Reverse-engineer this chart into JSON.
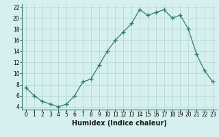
{
  "x": [
    0,
    1,
    2,
    3,
    4,
    5,
    6,
    7,
    8,
    9,
    10,
    11,
    12,
    13,
    14,
    15,
    16,
    17,
    18,
    19,
    20,
    21,
    22,
    23
  ],
  "y": [
    7.5,
    6.0,
    5.0,
    4.5,
    4.0,
    4.5,
    6.0,
    8.5,
    9.0,
    11.5,
    14.0,
    16.0,
    17.5,
    19.0,
    21.5,
    20.5,
    21.0,
    21.5,
    20.0,
    20.5,
    18.0,
    13.5,
    10.5,
    8.5
  ],
  "line_color": "#2d7d6e",
  "marker": "+",
  "marker_size": 4,
  "bg_color": "#d6f0ef",
  "grid_color": "#b8d8d6",
  "xlabel": "Humidex (Indice chaleur)",
  "xlim": [
    -0.5,
    23.5
  ],
  "ylim": [
    3.5,
    22.5
  ],
  "yticks": [
    4,
    6,
    8,
    10,
    12,
    14,
    16,
    18,
    20,
    22
  ],
  "xticks": [
    0,
    1,
    2,
    3,
    4,
    5,
    6,
    7,
    8,
    9,
    10,
    11,
    12,
    13,
    14,
    15,
    16,
    17,
    18,
    19,
    20,
    21,
    22,
    23
  ],
  "tick_fontsize": 5.5,
  "xlabel_fontsize": 7.0
}
